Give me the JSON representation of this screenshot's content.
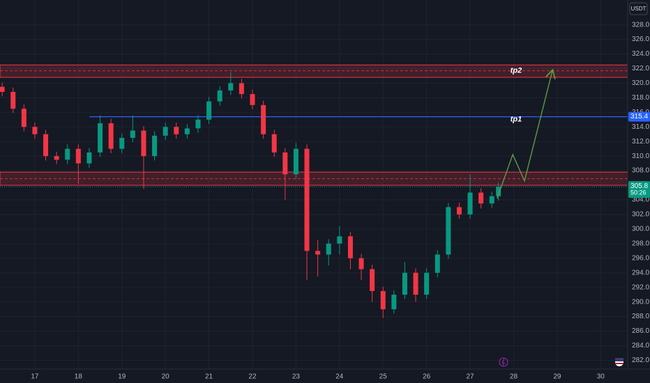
{
  "chart_data": {
    "type": "candlestick",
    "currency": "USDT",
    "up_color": "#089981",
    "down_color": "#f23645",
    "x": [
      16.25,
      16.5,
      16.75,
      17,
      17.25,
      17.5,
      17.75,
      18,
      18.25,
      18.5,
      18.75,
      19,
      19.25,
      19.5,
      19.75,
      20,
      20.25,
      20.5,
      20.75,
      21,
      21.25,
      21.5,
      21.75,
      22,
      22.25,
      22.5,
      22.75,
      23,
      23.25,
      23.5,
      23.75,
      24,
      24.25,
      24.5,
      24.75,
      25,
      25.25,
      25.5,
      25.75,
      26,
      26.25,
      26.5,
      26.75,
      27,
      27.25,
      27.5,
      27.65
    ],
    "open": [
      319.5,
      318.8,
      316.5,
      314,
      313,
      310,
      309.5,
      311,
      309,
      310.5,
      314.5,
      311,
      312.5,
      313.5,
      310,
      312.8,
      314,
      313,
      313.8,
      315,
      317.5,
      319,
      320,
      318.5,
      317,
      313,
      310.5,
      307.5,
      311,
      297,
      296.5,
      298,
      299,
      296,
      294.5,
      291.5,
      289,
      291,
      294,
      291,
      294,
      296.5,
      303,
      302,
      305,
      303.5,
      304.5
    ],
    "high": [
      320.1,
      319.4,
      317.1,
      314.6,
      313.6,
      310.6,
      311.6,
      311.6,
      311.1,
      315.6,
      315.1,
      313.1,
      315.6,
      314.1,
      313.4,
      314.6,
      314.6,
      314.4,
      315.6,
      318.1,
      319.6,
      321.5,
      320.6,
      319.1,
      317.6,
      313.6,
      311.1,
      311.8,
      311.6,
      298.5,
      298.6,
      300.4,
      299.6,
      296.6,
      295.1,
      292.1,
      291.6,
      295.5,
      294.6,
      294.6,
      297.1,
      303.6,
      303.6,
      307.5,
      305.6,
      305.1,
      306.4
    ],
    "low": [
      318.2,
      315.9,
      313.4,
      312.4,
      309.4,
      308.9,
      308.9,
      306.2,
      308.4,
      309.9,
      310.4,
      310.4,
      311.9,
      305.5,
      309.4,
      312.2,
      312.4,
      312.4,
      313.2,
      314.4,
      316.9,
      318.4,
      317.9,
      316.4,
      312.4,
      309.9,
      304,
      306.9,
      293,
      293.5,
      295,
      296.5,
      294.5,
      293,
      290,
      287.8,
      288.4,
      290.4,
      290,
      290.4,
      293.4,
      295.9,
      301.4,
      301.4,
      302.8,
      302.9,
      303.9
    ],
    "close": [
      318.8,
      316.5,
      314,
      313,
      310,
      309.5,
      311,
      309,
      310.5,
      314.5,
      311,
      312.5,
      313.5,
      310,
      312.8,
      314,
      313,
      313.8,
      315,
      317.5,
      319,
      320,
      318.5,
      317,
      313,
      310.5,
      307.5,
      311,
      297,
      296.5,
      298,
      299,
      296,
      294.5,
      291.5,
      289,
      291,
      294,
      291,
      294,
      296.5,
      303,
      302,
      305,
      303.5,
      304.5,
      305.8
    ],
    "countdown": "50:26",
    "xlim": [
      16.2,
      30.62
    ],
    "xticks": [
      17,
      18,
      19,
      20,
      21,
      22,
      23,
      24,
      25,
      26,
      27,
      28,
      29,
      30
    ],
    "ylim": [
      280.8,
      331.4
    ],
    "yticks": [
      {
        "value": 282,
        "label": "282.0"
      },
      {
        "value": 284,
        "label": "284.0"
      },
      {
        "value": 286,
        "label": "286.0"
      },
      {
        "value": 288,
        "label": "288.0"
      },
      {
        "value": 290,
        "label": "290.0"
      },
      {
        "value": 292,
        "label": "292.0"
      },
      {
        "value": 294,
        "label": "294.0"
      },
      {
        "value": 296,
        "label": "296.0"
      },
      {
        "value": 298,
        "label": "298.0"
      },
      {
        "value": 300,
        "label": "300.0"
      },
      {
        "value": 302,
        "label": "302.0"
      },
      {
        "value": 304,
        "label": "304.0"
      },
      {
        "value": 306,
        "label": "306.0"
      },
      {
        "value": 308,
        "label": "308.0"
      },
      {
        "value": 310,
        "label": "310.0"
      },
      {
        "value": 312,
        "label": "312.0"
      },
      {
        "value": 314,
        "label": "314.0"
      },
      {
        "value": 316,
        "label": "316.0"
      },
      {
        "value": 318,
        "label": "318.0"
      },
      {
        "value": 320,
        "label": "320.0"
      },
      {
        "value": 322,
        "label": "322.0"
      },
      {
        "value": 324,
        "label": "324.0"
      },
      {
        "value": 326,
        "label": "326.0"
      },
      {
        "value": 328,
        "label": "328.0"
      }
    ],
    "grid": true,
    "zones": [
      {
        "low": 320.8,
        "high": 322.5,
        "mid": 321.7,
        "label": "tp2"
      },
      {
        "low": 306.0,
        "high": 307.8,
        "mid": 306.9
      }
    ],
    "zone_color": "#f23645",
    "level_line": {
      "value": 315.4,
      "label": "tp1",
      "color": "#2962ff"
    },
    "projection": {
      "x": [
        27.62,
        27.98,
        28.25,
        28.89
      ],
      "y": [
        304.2,
        310.2,
        306.6,
        321.7
      ],
      "color": "#5b9c46"
    }
  }
}
